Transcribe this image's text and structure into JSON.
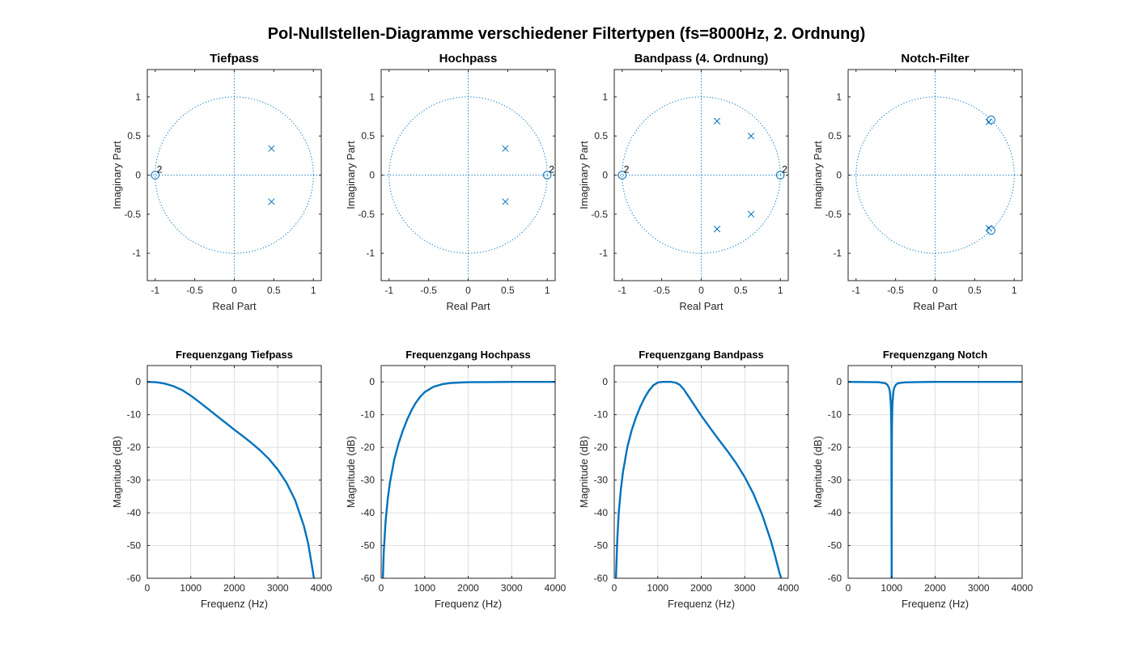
{
  "suptitle": "Pol-Nullstellen-Diagramme verschiedener Filtertypen (fs=8000Hz, 2. Ordnung)",
  "colors": {
    "accent": "#0072bd",
    "grid": "#dfdfdf",
    "axis": "#262626"
  },
  "chart_data": [
    {
      "type": "scatter",
      "title": "Tiefpass",
      "xlabel": "Real Part",
      "ylabel": "Imaginary Part",
      "xlim": [
        -1.1,
        1.1
      ],
      "ylim": [
        -1.35,
        1.35
      ],
      "xticks": [
        -1,
        -0.5,
        0,
        0.5,
        1
      ],
      "yticks": [
        -1,
        -0.5,
        0,
        0.5,
        1
      ],
      "xtick_labels": [
        "-1",
        "-0.5",
        "0",
        "0.5",
        "1"
      ],
      "ytick_labels": [
        "-1",
        "-0.5",
        "0",
        "0.5",
        "1"
      ],
      "unit_circle": true,
      "poles": [
        [
          0.47,
          0.34
        ],
        [
          0.47,
          -0.34
        ]
      ],
      "zeros": [
        [
          -1,
          0,
          "2"
        ]
      ]
    },
    {
      "type": "scatter",
      "title": "Hochpass",
      "xlabel": "Real Part",
      "ylabel": "Imaginary Part",
      "xlim": [
        -1.1,
        1.1
      ],
      "ylim": [
        -1.35,
        1.35
      ],
      "xticks": [
        -1,
        -0.5,
        0,
        0.5,
        1
      ],
      "yticks": [
        -1,
        -0.5,
        0,
        0.5,
        1
      ],
      "xtick_labels": [
        "-1",
        "-0.5",
        "0",
        "0.5",
        "1"
      ],
      "ytick_labels": [
        "-1",
        "-0.5",
        "0",
        "0.5",
        "1"
      ],
      "unit_circle": true,
      "poles": [
        [
          0.47,
          0.34
        ],
        [
          0.47,
          -0.34
        ]
      ],
      "zeros": [
        [
          1,
          0,
          "2"
        ]
      ]
    },
    {
      "type": "scatter",
      "title": "Bandpass (4. Ordnung)",
      "xlabel": "Real Part",
      "ylabel": "Imaginary Part",
      "xlim": [
        -1.1,
        1.1
      ],
      "ylim": [
        -1.35,
        1.35
      ],
      "xticks": [
        -1,
        -0.5,
        0,
        0.5,
        1
      ],
      "yticks": [
        -1,
        -0.5,
        0,
        0.5,
        1
      ],
      "xtick_labels": [
        "-1",
        "-0.5",
        "0",
        "0.5",
        "1"
      ],
      "ytick_labels": [
        "-1",
        "-0.5",
        "0",
        "0.5",
        "1"
      ],
      "unit_circle": true,
      "poles": [
        [
          0.2,
          0.69
        ],
        [
          0.2,
          -0.69
        ],
        [
          0.63,
          0.5
        ],
        [
          0.63,
          -0.5
        ]
      ],
      "zeros": [
        [
          -1,
          0,
          "2"
        ],
        [
          1,
          0,
          "2"
        ]
      ]
    },
    {
      "type": "scatter",
      "title": "Notch-Filter",
      "xlabel": "Real Part",
      "ylabel": "Imaginary Part",
      "xlim": [
        -1.1,
        1.1
      ],
      "ylim": [
        -1.35,
        1.35
      ],
      "xticks": [
        -1,
        -0.5,
        0,
        0.5,
        1
      ],
      "yticks": [
        -1,
        -0.5,
        0,
        0.5,
        1
      ],
      "xtick_labels": [
        "-1",
        "-0.5",
        "0",
        "0.5",
        "1"
      ],
      "ytick_labels": [
        "-1",
        "-0.5",
        "0",
        "0.5",
        "1"
      ],
      "unit_circle": true,
      "poles": [
        [
          0.68,
          0.68
        ],
        [
          0.68,
          -0.68
        ]
      ],
      "zeros": [
        [
          0.707,
          0.707,
          ""
        ],
        [
          0.707,
          -0.707,
          ""
        ]
      ]
    },
    {
      "type": "line",
      "title": "Frequenzgang Tiefpass",
      "xlabel": "Frequenz (Hz)",
      "ylabel": "Magnitude (dB)",
      "xlim": [
        0,
        4000
      ],
      "ylim": [
        -60,
        5
      ],
      "grid": true,
      "xticks": [
        0,
        1000,
        2000,
        3000,
        4000
      ],
      "yticks": [
        0,
        -10,
        -20,
        -30,
        -40,
        -50,
        -60
      ],
      "xtick_labels": [
        "0",
        "1000",
        "2000",
        "3000",
        "4000"
      ],
      "ytick_labels": [
        "0",
        "-10",
        "-20",
        "-30",
        "-40",
        "-50",
        "-60"
      ],
      "series": [
        {
          "name": "Tiefpass",
          "x": [
            0,
            200,
            400,
            600,
            800,
            1000,
            1200,
            1400,
            1600,
            1800,
            2000,
            2200,
            2400,
            2600,
            2800,
            3000,
            3200,
            3400,
            3600,
            3700,
            3800,
            3830
          ],
          "y": [
            0,
            -0.1,
            -0.5,
            -1.3,
            -2.5,
            -4.2,
            -6.2,
            -8.3,
            -10.4,
            -12.5,
            -14.6,
            -16.6,
            -18.7,
            -21.0,
            -23.6,
            -26.8,
            -30.8,
            -36.2,
            -44.0,
            -49.5,
            -57.5,
            -60
          ]
        }
      ]
    },
    {
      "type": "line",
      "title": "Frequenzgang Hochpass",
      "xlabel": "Frequenz (Hz)",
      "ylabel": "Magnitude (dB)",
      "xlim": [
        0,
        4000
      ],
      "ylim": [
        -60,
        5
      ],
      "grid": true,
      "xticks": [
        0,
        1000,
        2000,
        3000,
        4000
      ],
      "yticks": [
        0,
        -10,
        -20,
        -30,
        -40,
        -50,
        -60
      ],
      "xtick_labels": [
        "0",
        "1000",
        "2000",
        "3000",
        "4000"
      ],
      "ytick_labels": [
        "0",
        "-10",
        "-20",
        "-30",
        "-40",
        "-50",
        "-60"
      ],
      "series": [
        {
          "name": "Hochpass",
          "x": [
            40,
            60,
            100,
            150,
            200,
            300,
            400,
            500,
            600,
            700,
            800,
            900,
            1000,
            1200,
            1400,
            1600,
            1800,
            2000,
            2500,
            3000,
            3500,
            4000
          ],
          "y": [
            -60,
            -52,
            -42.8,
            -35.8,
            -30.8,
            -23.8,
            -18.8,
            -14.8,
            -11.4,
            -8.6,
            -6.3,
            -4.5,
            -3.1,
            -1.5,
            -0.7,
            -0.35,
            -0.2,
            -0.1,
            -0.03,
            0,
            0,
            0
          ]
        }
      ]
    },
    {
      "type": "line",
      "title": "Frequenzgang Bandpass",
      "xlabel": "Frequenz (Hz)",
      "ylabel": "Magnitude (dB)",
      "xlim": [
        0,
        4000
      ],
      "ylim": [
        -60,
        5
      ],
      "grid": true,
      "xticks": [
        0,
        1000,
        2000,
        3000,
        4000
      ],
      "yticks": [
        0,
        -10,
        -20,
        -30,
        -40,
        -50,
        -60
      ],
      "xtick_labels": [
        "0",
        "1000",
        "2000",
        "3000",
        "4000"
      ],
      "ytick_labels": [
        "0",
        "-10",
        "-20",
        "-30",
        "-40",
        "-50",
        "-60"
      ],
      "series": [
        {
          "name": "Bandpass",
          "x": [
            40,
            70,
            100,
            150,
            200,
            300,
            400,
            500,
            600,
            700,
            800,
            900,
            1000,
            1100,
            1200,
            1300,
            1400,
            1500,
            1600,
            1800,
            2000,
            2200,
            2400,
            2600,
            2800,
            3000,
            3200,
            3400,
            3600,
            3700,
            3800,
            3840
          ],
          "y": [
            -60,
            -48,
            -40.5,
            -33,
            -27.5,
            -20,
            -14.8,
            -10.8,
            -7.5,
            -4.8,
            -2.6,
            -1,
            -0.2,
            0,
            0,
            0,
            -0.2,
            -0.8,
            -2.3,
            -6.3,
            -10.3,
            -14,
            -17.6,
            -21.1,
            -24.8,
            -29.1,
            -34.2,
            -40.6,
            -48.5,
            -53.3,
            -58.5,
            -60
          ]
        }
      ]
    },
    {
      "type": "line",
      "title": "Frequenzgang Notch",
      "xlabel": "Frequenz (Hz)",
      "ylabel": "Magnitude (dB)",
      "xlim": [
        0,
        4000
      ],
      "ylim": [
        -60,
        5
      ],
      "grid": true,
      "xticks": [
        0,
        1000,
        2000,
        3000,
        4000
      ],
      "yticks": [
        0,
        -10,
        -20,
        -30,
        -40,
        -50,
        -60
      ],
      "xtick_labels": [
        "0",
        "1000",
        "2000",
        "3000",
        "4000"
      ],
      "ytick_labels": [
        "0",
        "-10",
        "-20",
        "-30",
        "-40",
        "-50",
        "-60"
      ],
      "series": [
        {
          "name": "Notch",
          "x": [
            0,
            700,
            850,
            900,
            940,
            960,
            980,
            990,
            996,
            1000,
            1004,
            1010,
            1020,
            1040,
            1060,
            1100,
            1150,
            1300,
            1600,
            2000,
            3000,
            4000
          ],
          "y": [
            0,
            -0.1,
            -0.4,
            -0.8,
            -1.8,
            -3,
            -6.4,
            -11.1,
            -18.8,
            -60,
            -18.8,
            -11.1,
            -6.4,
            -3,
            -1.8,
            -0.8,
            -0.4,
            -0.15,
            -0.05,
            0,
            0,
            0
          ]
        }
      ]
    }
  ]
}
